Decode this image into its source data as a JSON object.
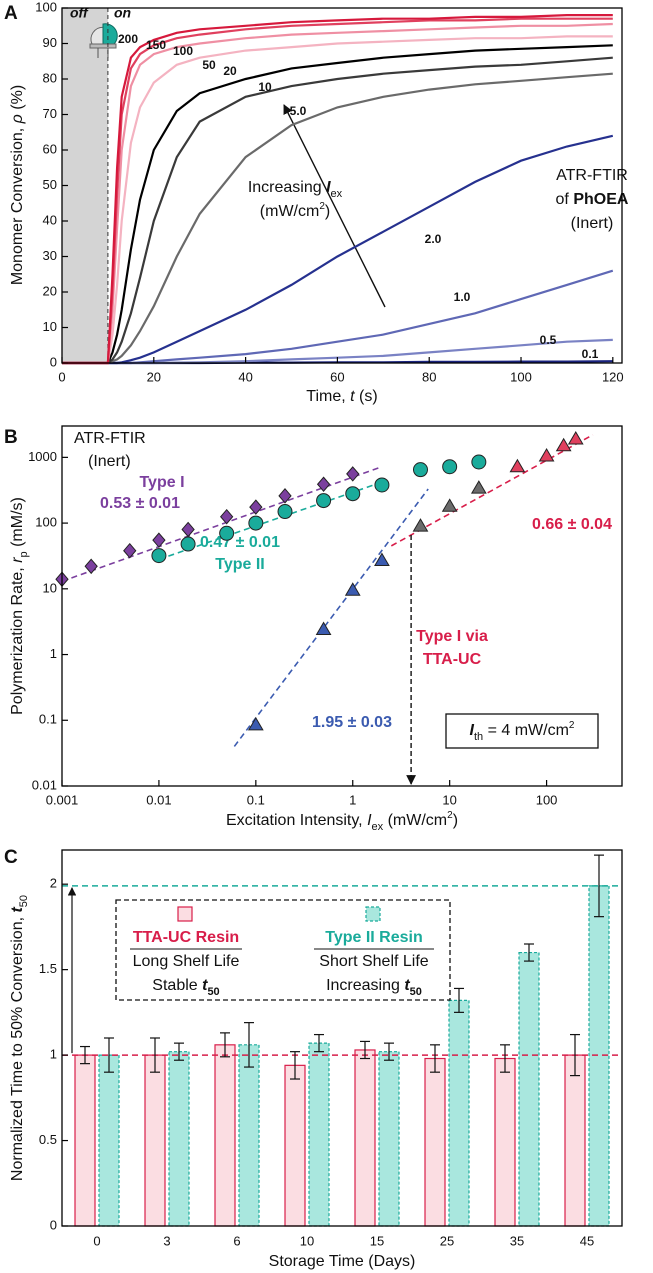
{
  "chart_data": [
    {
      "label": "A",
      "type": "line",
      "x_label": [
        "Time, ",
        "t",
        " (s)"
      ],
      "y_label": [
        "Monomer Conversion, ",
        "ρ",
        " (%)"
      ],
      "x": [
        0,
        10,
        11,
        12,
        13,
        15,
        17,
        20,
        25,
        30,
        40,
        50,
        60,
        70,
        80,
        90,
        100,
        110,
        120
      ],
      "series": [
        {
          "name": "200",
          "color": "#d6193c",
          "values": [
            0,
            0,
            25,
            55,
            75,
            86,
            89,
            91,
            93,
            94,
            95,
            96,
            96.5,
            97,
            97,
            97.5,
            97.5,
            98,
            98
          ]
        },
        {
          "name": "150",
          "color": "#e0405e",
          "values": [
            0,
            0,
            20,
            48,
            70,
            83,
            87,
            89.5,
            91.5,
            92.5,
            94,
            95,
            95.5,
            96,
            96.5,
            96.5,
            97,
            97,
            97
          ]
        },
        {
          "name": "100",
          "color": "#ef8fa3",
          "values": [
            0,
            0,
            15,
            38,
            60,
            78,
            84,
            87,
            89,
            90,
            91.5,
            92.5,
            93,
            93.5,
            94,
            94.5,
            95,
            95,
            95.5
          ]
        },
        {
          "name": "50",
          "color": "#f4b3c1",
          "values": [
            0,
            0,
            8,
            22,
            40,
            62,
            72,
            79,
            84,
            86,
            88,
            89,
            90,
            90.5,
            91,
            91.5,
            91.5,
            92,
            92
          ]
        },
        {
          "name": "20",
          "color": "#000000",
          "values": [
            0,
            0,
            3,
            8,
            15,
            32,
            46,
            60,
            71,
            76,
            80,
            83,
            84.5,
            86,
            87,
            88,
            88.5,
            89,
            89.5
          ]
        },
        {
          "name": "10",
          "color": "#3a3a3a",
          "values": [
            0,
            0,
            1,
            3,
            6,
            14,
            24,
            40,
            58,
            68,
            75,
            78,
            80,
            81.5,
            82.5,
            83.5,
            84,
            85,
            86
          ]
        },
        {
          "name": "5.0",
          "color": "#6a6a6a",
          "values": [
            0,
            0,
            0.5,
            1,
            2,
            5,
            9,
            16,
            30,
            42,
            58,
            67,
            72,
            75,
            77,
            78.5,
            79.5,
            80.5,
            81.5
          ]
        },
        {
          "name": "2.0",
          "color": "#26318f",
          "values": [
            0,
            0,
            0,
            0,
            0.2,
            0.8,
            1.5,
            3,
            6,
            9,
            15,
            22,
            30,
            37,
            44,
            51,
            57,
            61,
            64
          ]
        },
        {
          "name": "1.0",
          "color": "#5f68b5",
          "values": [
            0,
            0,
            0,
            0,
            0,
            0,
            0.2,
            0.5,
            1,
            1.5,
            2.5,
            4,
            6,
            8,
            11,
            14,
            18,
            22,
            26
          ]
        },
        {
          "name": "0.5",
          "color": "#7a82c4",
          "values": [
            0,
            0,
            0,
            0,
            0,
            0,
            0,
            0,
            0.1,
            0.2,
            0.5,
            1,
            1.5,
            2,
            3,
            4,
            5,
            6,
            6.5
          ]
        },
        {
          "name": "0.1",
          "color": "#1a237e",
          "values": [
            0,
            0,
            0,
            0,
            0,
            0,
            0,
            0,
            0,
            0,
            0.1,
            0.1,
            0.2,
            0.2,
            0.3,
            0.3,
            0.4,
            0.4,
            0.5
          ]
        }
      ],
      "xlim": [
        0,
        122
      ],
      "ylim": [
        0,
        100
      ],
      "xticks": [
        0,
        20,
        40,
        60,
        80,
        100,
        120
      ],
      "yticks": [
        0,
        10,
        20,
        30,
        40,
        50,
        60,
        70,
        80,
        90,
        100
      ],
      "off_region": [
        0,
        10
      ],
      "annotations": {
        "increasing": [
          "Increasing ",
          "I",
          "ex"
        ],
        "units": [
          "(mW/cm",
          "2",
          ")"
        ],
        "method": [
          "ATR-FTIR",
          "of ",
          "PhOEA",
          "(Inert)"
        ],
        "off": "off",
        "on": "on"
      }
    },
    {
      "label": "B",
      "type": "scatter",
      "x_scale": "log",
      "y_scale": "log",
      "x_label": [
        "Excitation Intensity, ",
        "I",
        "ex",
        " (mW/cm",
        "2",
        ")"
      ],
      "y_label": [
        "Polymerization Rate, ",
        "r",
        "p",
        " (mM/s)"
      ],
      "xlim": [
        0.001,
        600
      ],
      "ylim": [
        0.01,
        3000
      ],
      "xticks": [
        0.001,
        0.01,
        0.1,
        1,
        10,
        100
      ],
      "yticks": [
        0.01,
        0.1,
        1,
        10,
        100,
        1000
      ],
      "annotation": [
        "ATR-FTIR",
        "(Inert)"
      ],
      "series": [
        {
          "name": "Type I",
          "color": "#7b3f9e",
          "marker": "diamond",
          "x": [
            0.001,
            0.002,
            0.005,
            0.01,
            0.02,
            0.05,
            0.1,
            0.2,
            0.5,
            1
          ],
          "values": [
            14,
            22,
            38,
            55,
            80,
            125,
            175,
            260,
            390,
            560
          ]
        },
        {
          "name": "Type II",
          "color": "#1aab9b",
          "marker": "circle",
          "x": [
            0.01,
            0.02,
            0.05,
            0.1,
            0.2,
            0.5,
            1,
            2,
            5,
            10,
            20
          ],
          "values": [
            32,
            48,
            70,
            100,
            150,
            220,
            280,
            380,
            650,
            720,
            850
          ]
        },
        {
          "name": [
            "Type I via",
            "TTA-UC"
          ],
          "color": "#d81e4a",
          "marker": "triangle",
          "x": [
            0.1,
            0.5,
            1,
            2,
            5,
            10,
            20,
            50,
            100,
            150,
            200
          ],
          "values": [
            0.085,
            2.4,
            9.5,
            27,
            90,
            180,
            340,
            720,
            1050,
            1500,
            1900
          ],
          "colors": [
            "#3b5bb0",
            "#3b5bb0",
            "#3b5bb0",
            "#3b5bb0",
            "#6b6b6b",
            "#6b6b6b",
            "#6b6b6b",
            "#e0405e",
            "#e0405e",
            "#e0405e",
            "#e0405e"
          ]
        }
      ],
      "fits": [
        {
          "label": "0.53 ± 0.01",
          "color": "#7b3f9e",
          "x": [
            0.001,
            2
          ],
          "values": [
            13,
            720
          ]
        },
        {
          "label": "0.47 ± 0.01",
          "color": "#1aab9b",
          "x": [
            0.01,
            2
          ],
          "values": [
            28,
            420
          ]
        },
        {
          "label": "1.95 ± 0.03",
          "color": "#3b5bb0",
          "x": [
            0.06,
            6
          ],
          "values": [
            0.04,
            330
          ]
        },
        {
          "label": "0.66 ± 0.04",
          "color": "#d81e4a",
          "x": [
            2.5,
            300
          ],
          "values": [
            45,
            2200
          ]
        }
      ],
      "threshold": {
        "value": 4,
        "label": [
          "I",
          "th",
          " = 4 mW/cm",
          "2"
        ]
      }
    },
    {
      "label": "C",
      "type": "bar",
      "x_label": "Storage Time (Days)",
      "y_label": [
        "Normalized Time to 50% Conversion, ",
        "t",
        "50"
      ],
      "categories": [
        "0",
        "3",
        "6",
        "10",
        "15",
        "25",
        "35",
        "45"
      ],
      "series": [
        {
          "name": "TTA-UC Resin",
          "color": "#d81e4a",
          "fill": "#fbdde2",
          "values": [
            1.0,
            1.0,
            1.06,
            0.94,
            1.03,
            0.98,
            0.98,
            1.0
          ],
          "errors": [
            0.05,
            0.1,
            0.07,
            0.08,
            0.05,
            0.08,
            0.08,
            0.12
          ],
          "notes": [
            "Long Shelf Life",
            [
              "Stable ",
              "t",
              "50"
            ]
          ]
        },
        {
          "name": "Type II Resin",
          "color": "#1aab9b",
          "fill": "#a9e7de",
          "values": [
            1.0,
            1.02,
            1.06,
            1.07,
            1.02,
            1.32,
            1.6,
            1.99
          ],
          "errors": [
            0.1,
            0.05,
            0.13,
            0.05,
            0.05,
            0.07,
            0.05,
            0.18
          ],
          "notes": [
            "Short Shelf Life",
            [
              "Increasing ",
              "t",
              "50"
            ]
          ]
        }
      ],
      "ylim": [
        0,
        2.2
      ],
      "yticks": [
        0,
        0.5,
        1,
        1.5,
        2
      ],
      "reference_lines": [
        {
          "value": 1,
          "color": "#d81e4a"
        },
        {
          "value": 1.99,
          "color": "#1aab9b"
        }
      ]
    }
  ]
}
